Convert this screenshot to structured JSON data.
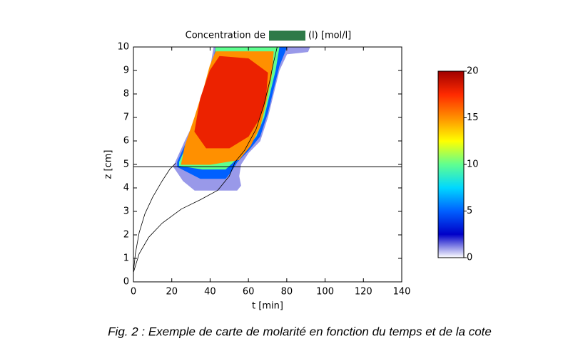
{
  "chart_data": {
    "type": "contour",
    "title": "Concentration de",
    "title_suffix": "(l) [mol/l]",
    "xlabel": "t [min]",
    "ylabel": "z [cm]",
    "caption": "Fig. 2 : Exemple de carte de molarité en fonction du temps et de la cote",
    "xlim": [
      0,
      140
    ],
    "xticks": [
      0,
      20,
      40,
      60,
      80,
      100,
      120,
      140
    ],
    "ylim": [
      0,
      10
    ],
    "yticks": [
      0,
      1,
      2,
      3,
      4,
      5,
      6,
      7,
      8,
      9,
      10
    ],
    "clim": [
      0,
      20
    ],
    "cticks": [
      0,
      5,
      10,
      15,
      20
    ],
    "colorscale": [
      "#ffffff",
      "#0000c8",
      "#0060ff",
      "#00d8ff",
      "#60ff90",
      "#ffff00",
      "#ff9000",
      "#ff2a00",
      "#a00000"
    ],
    "hline": 4.9,
    "regions": [
      {
        "level": 1,
        "x": [
          42,
          92,
          91,
          80,
          76,
          73,
          70,
          66,
          60,
          56,
          55,
          56,
          54,
          32,
          26,
          21,
          22,
          27,
          33,
          37,
          40
        ],
        "y": [
          10,
          10,
          9.8,
          9.7,
          9,
          8,
          7,
          6,
          5.5,
          5,
          4.5,
          4.1,
          3.9,
          3.9,
          4.3,
          4.9,
          5.1,
          6,
          7,
          8,
          9
        ]
      },
      {
        "level": 5,
        "x": [
          43,
          80,
          76,
          73,
          70,
          66,
          60,
          54,
          51,
          48,
          35,
          23,
          23,
          28,
          34,
          38,
          41
        ],
        "y": [
          10,
          10,
          9.2,
          8.2,
          7.2,
          6.2,
          5.6,
          5.1,
          4.7,
          4.4,
          4.4,
          4.9,
          5.1,
          6,
          7,
          8,
          9
        ]
      },
      {
        "level": 10,
        "x": [
          43,
          76,
          74,
          71,
          68,
          64,
          58,
          52,
          48,
          36,
          24,
          24,
          29,
          35,
          39,
          42
        ],
        "y": [
          10,
          10,
          9,
          8,
          7,
          6.2,
          5.6,
          5.1,
          4.8,
          4.8,
          4.95,
          5.1,
          6,
          7,
          8,
          9
        ]
      },
      {
        "level": 15,
        "x": [
          43,
          73,
          72,
          69,
          66,
          61,
          55,
          40,
          25,
          27,
          32,
          37,
          40
        ],
        "y": [
          9.8,
          9.8,
          8.8,
          7.6,
          6.6,
          5.8,
          5.2,
          5.0,
          5.0,
          5.8,
          7,
          8.3,
          9.2
        ]
      },
      {
        "level": 18,
        "x": [
          45,
          60,
          70,
          69,
          66,
          60,
          50,
          38,
          32,
          35,
          40
        ],
        "y": [
          9.6,
          9.5,
          8.9,
          7.8,
          7,
          6.2,
          5.7,
          5.7,
          6.4,
          7.8,
          9
        ]
      }
    ],
    "series": [
      {
        "color": "#000000",
        "x": [
          0,
          1,
          3,
          6,
          10,
          15,
          19,
          22
        ],
        "y": [
          0.4,
          1.2,
          2.1,
          2.9,
          3.6,
          4.3,
          4.8,
          5.05
        ]
      },
      {
        "color": "#000000",
        "x": [
          0,
          3,
          8,
          15,
          25,
          35,
          44,
          50,
          53,
          58,
          64,
          68,
          71,
          73,
          75
        ],
        "y": [
          0.4,
          1.2,
          1.9,
          2.5,
          3.1,
          3.5,
          3.9,
          4.5,
          5.1,
          5.6,
          6.5,
          7.5,
          8.5,
          9.3,
          10
        ]
      }
    ]
  }
}
